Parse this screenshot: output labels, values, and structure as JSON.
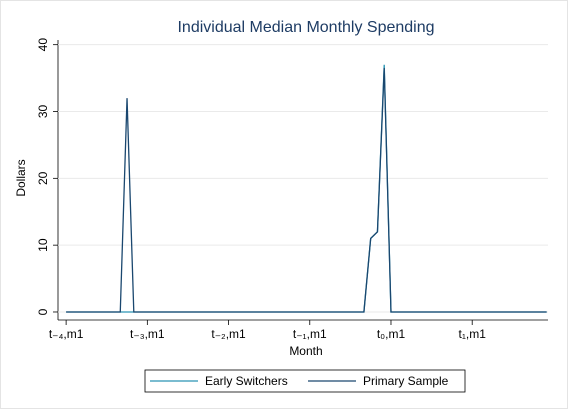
{
  "chart_data": {
    "type": "line",
    "title": "Individual Median Monthly Spending",
    "x_label": "Month",
    "y_label": "Dollars",
    "x": [
      -48,
      -40,
      -39,
      -38,
      -4,
      -3,
      -2,
      -1,
      0,
      23
    ],
    "series": [
      {
        "name": "Early Switchers",
        "color": "#2a95b3",
        "values": [
          0,
          0,
          0,
          0,
          0,
          11,
          12,
          37,
          0,
          0
        ]
      },
      {
        "name": "Primary Sample",
        "color": "#1a476f",
        "values": [
          0,
          0,
          32,
          0,
          0,
          11,
          12,
          36.5,
          0,
          0
        ]
      }
    ],
    "xlim": [
      -49.2,
      23.2
    ],
    "ylim": [
      -1.2,
      40.7
    ],
    "xticks": [
      {
        "value": -48,
        "label": "t₋₄,m1"
      },
      {
        "value": -36,
        "label": "t₋₃,m1"
      },
      {
        "value": -24,
        "label": "t₋₂,m1"
      },
      {
        "value": -12,
        "label": "t₋₁,m1"
      },
      {
        "value": 0,
        "label": "t₀,m1"
      },
      {
        "value": 12,
        "label": "t₁,m1"
      }
    ],
    "yticks": [
      0,
      10,
      20,
      30,
      40
    ],
    "grid": true,
    "legend": "bottom"
  }
}
